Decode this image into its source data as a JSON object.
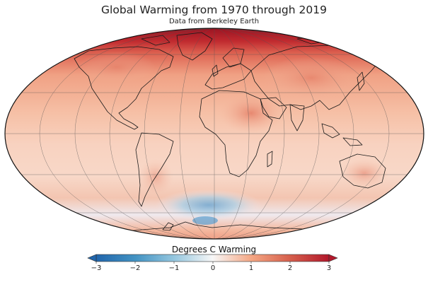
{
  "title": "Global Warming from 1970 through 2019",
  "subtitle": "Data from Berkeley Earth",
  "colorbar": {
    "label": "Degrees C Warming",
    "ticks": [
      "−3",
      "−2",
      "−1",
      "0",
      "1",
      "2",
      "3"
    ],
    "min": -3,
    "max": 3,
    "colors": [
      "#2166ac",
      "#4393c3",
      "#92c5de",
      "#f7f7f7",
      "#f4a582",
      "#d6604d",
      "#b2182b"
    ]
  },
  "map": {
    "projection": "Mollweide",
    "grid": true
  }
}
